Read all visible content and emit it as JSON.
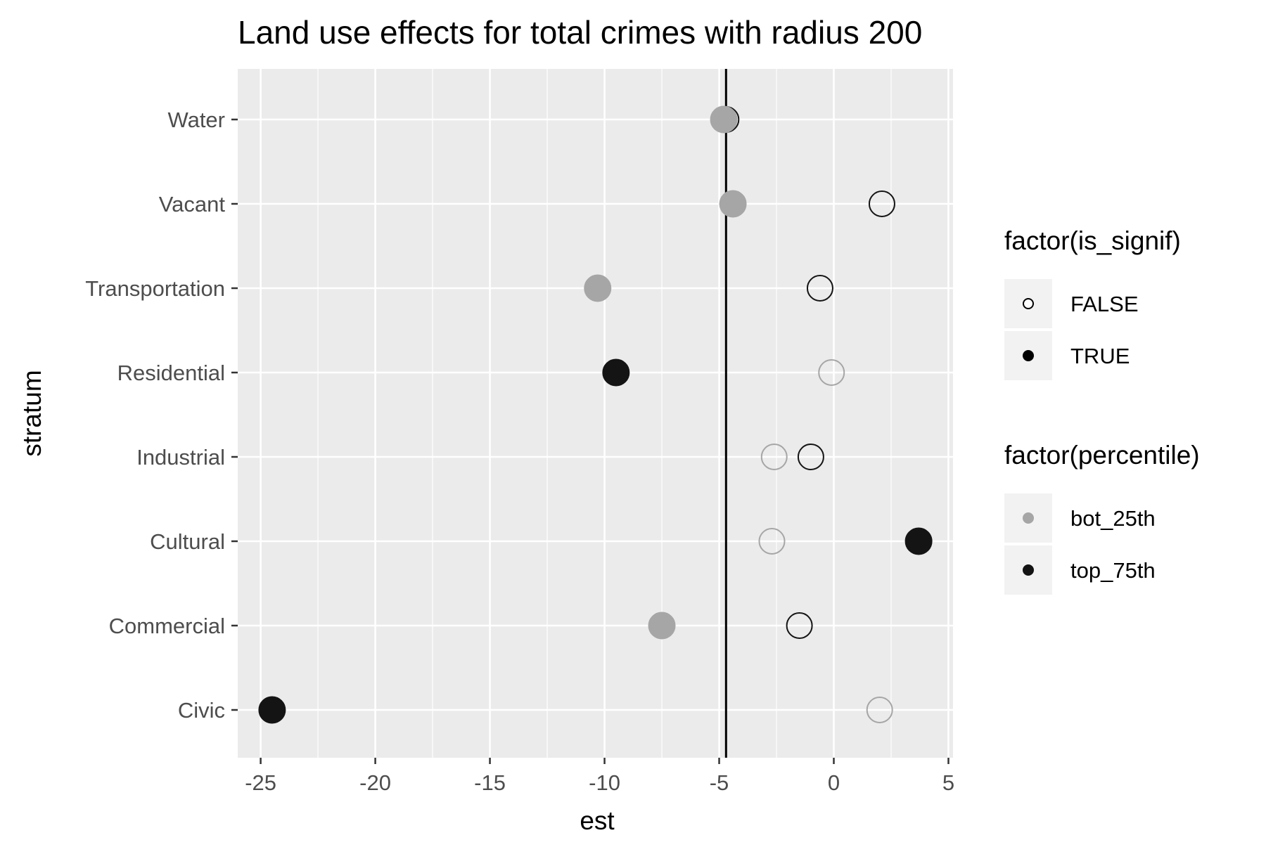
{
  "chart_data": {
    "type": "scatter",
    "title": "Land use effects for total crimes with radius 200",
    "xlabel": "est",
    "ylabel": "stratum",
    "xlim": [
      -26,
      5.2
    ],
    "x_ticks": [
      -25,
      -20,
      -15,
      -10,
      -5,
      0,
      5
    ],
    "x_tick_labels": [
      "-25",
      "-20",
      "-15",
      "-10",
      "-5",
      "0",
      "5"
    ],
    "categories": [
      "Civic",
      "Commercial",
      "Cultural",
      "Industrial",
      "Residential",
      "Transportation",
      "Vacant",
      "Water"
    ],
    "vline_x": -4.7,
    "grid": true,
    "panel_background": "#ebebeb",
    "grid_color": "#ffffff",
    "colors": {
      "bot_25th": "#a6a6a6",
      "top_75th": "#141414",
      "reference_line": "#000000"
    },
    "points": [
      {
        "stratum": "Water",
        "est": -4.7,
        "percentile": "top_75th",
        "is_signif": "FALSE"
      },
      {
        "stratum": "Water",
        "est": -4.8,
        "percentile": "bot_25th",
        "is_signif": "TRUE"
      },
      {
        "stratum": "Vacant",
        "est": -4.4,
        "percentile": "bot_25th",
        "is_signif": "TRUE"
      },
      {
        "stratum": "Vacant",
        "est": 2.1,
        "percentile": "top_75th",
        "is_signif": "FALSE"
      },
      {
        "stratum": "Transportation",
        "est": -10.3,
        "percentile": "bot_25th",
        "is_signif": "TRUE"
      },
      {
        "stratum": "Transportation",
        "est": -0.6,
        "percentile": "top_75th",
        "is_signif": "FALSE"
      },
      {
        "stratum": "Residential",
        "est": -9.5,
        "percentile": "top_75th",
        "is_signif": "TRUE"
      },
      {
        "stratum": "Residential",
        "est": -0.1,
        "percentile": "bot_25th",
        "is_signif": "FALSE"
      },
      {
        "stratum": "Industrial",
        "est": -2.6,
        "percentile": "bot_25th",
        "is_signif": "FALSE"
      },
      {
        "stratum": "Industrial",
        "est": -1.0,
        "percentile": "top_75th",
        "is_signif": "FALSE"
      },
      {
        "stratum": "Cultural",
        "est": -2.7,
        "percentile": "bot_25th",
        "is_signif": "FALSE"
      },
      {
        "stratum": "Cultural",
        "est": 3.7,
        "percentile": "top_75th",
        "is_signif": "TRUE"
      },
      {
        "stratum": "Commercial",
        "est": -7.5,
        "percentile": "bot_25th",
        "is_signif": "TRUE"
      },
      {
        "stratum": "Commercial",
        "est": -1.5,
        "percentile": "top_75th",
        "is_signif": "FALSE"
      },
      {
        "stratum": "Civic",
        "est": -24.5,
        "percentile": "top_75th",
        "is_signif": "TRUE"
      },
      {
        "stratum": "Civic",
        "est": 2.0,
        "percentile": "bot_25th",
        "is_signif": "FALSE"
      }
    ],
    "legends": [
      {
        "title": "factor(is_signif)",
        "entries": [
          {
            "label": "FALSE",
            "filled": false,
            "color": "#000000"
          },
          {
            "label": "TRUE",
            "filled": true,
            "color": "#000000"
          }
        ]
      },
      {
        "title": "factor(percentile)",
        "entries": [
          {
            "label": "bot_25th",
            "filled": true,
            "color": "#a6a6a6"
          },
          {
            "label": "top_75th",
            "filled": true,
            "color": "#141414"
          }
        ]
      }
    ],
    "legend_position": "right"
  }
}
